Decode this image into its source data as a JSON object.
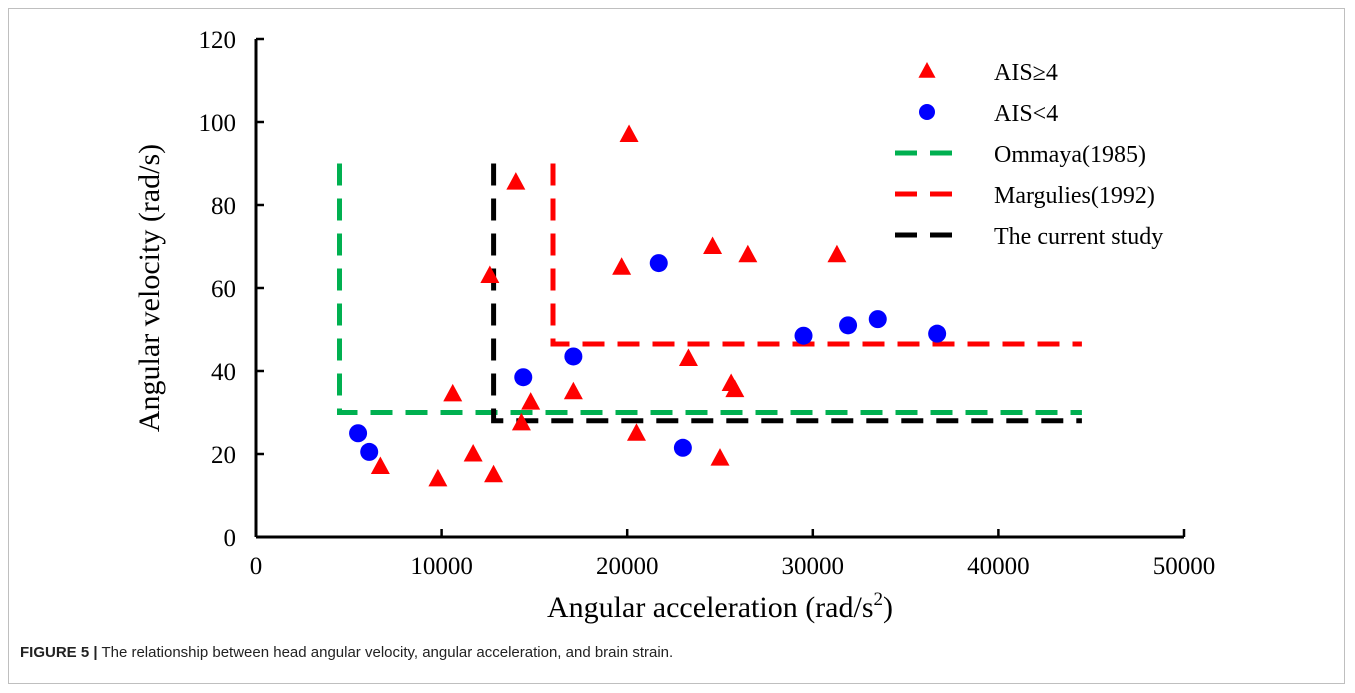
{
  "caption": {
    "label": "FIGURE 5 |",
    "text": "The relationship between head angular velocity, angular acceleration, and brain strain."
  },
  "chart_data": {
    "type": "scatter",
    "title": "",
    "xlabel": "Angular acceleration (rad/s",
    "xlabel_sup": "2",
    "xlabel_close": ")",
    "ylabel": "Angular velocity (rad/s)",
    "xlim": [
      0,
      50000
    ],
    "ylim": [
      0,
      120
    ],
    "xticks": [
      0,
      10000,
      20000,
      30000,
      40000,
      50000
    ],
    "yticks": [
      0,
      20,
      40,
      60,
      80,
      100,
      120
    ],
    "grid": false,
    "legend_position": "top-right",
    "series": [
      {
        "name": "AIS≥4",
        "kind": "triangle",
        "color": "#ff0000",
        "points": [
          [
            6700,
            17
          ],
          [
            9800,
            14
          ],
          [
            10600,
            34.5
          ],
          [
            11700,
            20
          ],
          [
            12600,
            63
          ],
          [
            12800,
            15
          ],
          [
            14000,
            85.5
          ],
          [
            14300,
            27.5
          ],
          [
            14800,
            32.5
          ],
          [
            17100,
            35
          ],
          [
            19700,
            65
          ],
          [
            20100,
            97
          ],
          [
            20500,
            25
          ],
          [
            23300,
            43
          ],
          [
            24600,
            70
          ],
          [
            25000,
            19
          ],
          [
            25600,
            37
          ],
          [
            25800,
            35.5
          ],
          [
            26500,
            68
          ],
          [
            31300,
            68
          ]
        ]
      },
      {
        "name": "AIS<4",
        "kind": "circle",
        "color": "#0000ff",
        "points": [
          [
            5500,
            25
          ],
          [
            6100,
            20.5
          ],
          [
            14400,
            38.5
          ],
          [
            17100,
            43.5
          ],
          [
            21700,
            66
          ],
          [
            23000,
            21.5
          ],
          [
            29500,
            48.5
          ],
          [
            31900,
            51
          ],
          [
            33500,
            52.5
          ],
          [
            36700,
            49
          ]
        ]
      },
      {
        "name": "Ommaya(1985)",
        "kind": "dashed-line",
        "color": "#00b050",
        "path": [
          [
            4500,
            90
          ],
          [
            4500,
            30
          ],
          [
            44500,
            30
          ]
        ]
      },
      {
        "name": "Margulies(1992)",
        "kind": "dashed-line",
        "color": "#ff0000",
        "path": [
          [
            16000,
            90
          ],
          [
            16000,
            46.5
          ],
          [
            44500,
            46.5
          ]
        ]
      },
      {
        "name": "The current study",
        "kind": "dashed-line",
        "color": "#000000",
        "path": [
          [
            12800,
            90
          ],
          [
            12800,
            28
          ],
          [
            44500,
            28
          ]
        ]
      }
    ]
  }
}
